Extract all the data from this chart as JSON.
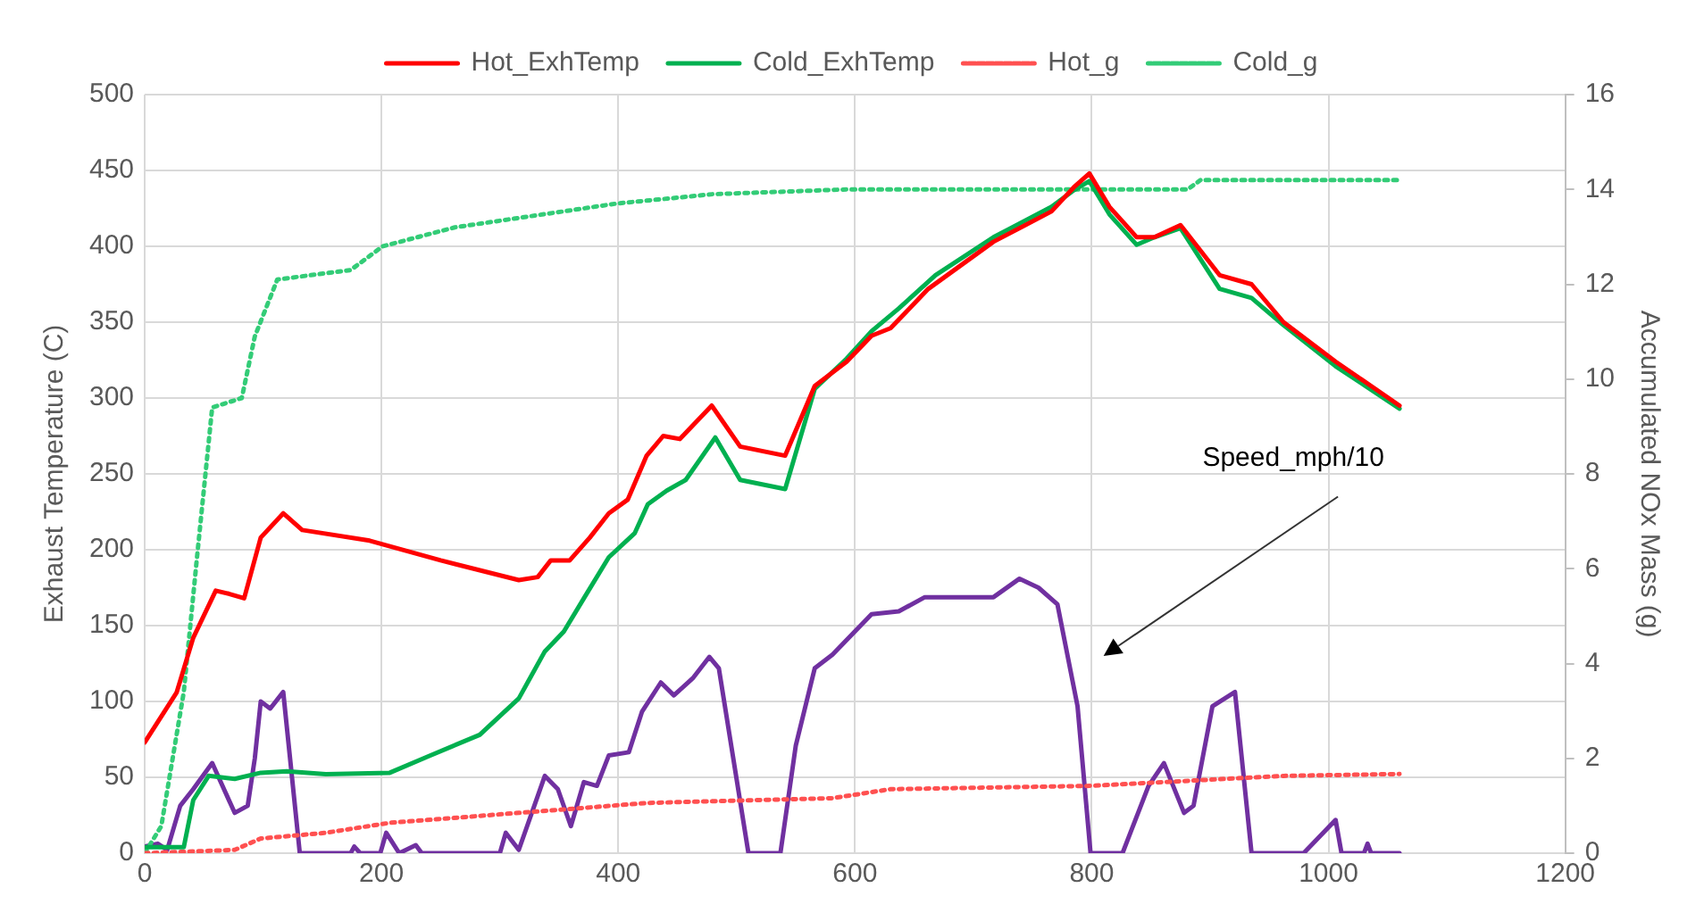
{
  "chart_data": {
    "type": "line",
    "xlabel": null,
    "ylabel": "Exhaust Temperature (C)",
    "y2label": "Accumulated NOx Mass (g)",
    "xlim": [
      0,
      1200
    ],
    "xticks": [
      0,
      200,
      400,
      600,
      800,
      1000,
      1200
    ],
    "ylim": [
      0,
      500
    ],
    "yticks": [
      0,
      50,
      100,
      150,
      200,
      250,
      300,
      350,
      400,
      450,
      500
    ],
    "y2lim": [
      0,
      16
    ],
    "y2ticks": [
      0,
      2,
      4,
      6,
      8,
      10,
      12,
      14,
      16
    ],
    "grid": true,
    "legend": "top",
    "marker": "none",
    "annotations": [
      "Speed_mph/10"
    ],
    "series": [
      {
        "name": "Hot_ExhTemp",
        "color": "#ff0000",
        "line_style": "solid",
        "x": [
          0,
          27,
          41,
          60,
          71,
          84,
          98,
          117,
          133,
          190,
          250,
          316,
          332,
          343,
          359,
          376,
          392,
          408,
          424,
          438,
          452,
          479,
          503,
          541,
          566,
          593,
          614,
          630,
          662,
          717,
          766,
          785,
          798,
          815,
          838,
          853,
          875,
          908,
          935,
          962,
          1006,
          1060
        ],
        "values": [
          73,
          106,
          142,
          173,
          171,
          168,
          208,
          224,
          213,
          206,
          193,
          180,
          182,
          193,
          193,
          208,
          224,
          233,
          262,
          275,
          273,
          295,
          268,
          262,
          308,
          324,
          341,
          346,
          372,
          403,
          423,
          439,
          448,
          426,
          406,
          406,
          414,
          381,
          375,
          350,
          324,
          295
        ]
      },
      {
        "name": "Cold_ExhTemp",
        "color": "#00b050",
        "line_style": "solid",
        "x": [
          0,
          33,
          41,
          54,
          76,
          98,
          120,
          153,
          207,
          240,
          283,
          316,
          338,
          354,
          371,
          392,
          414,
          425,
          441,
          457,
          482,
          503,
          541,
          566,
          593,
          614,
          637,
          668,
          717,
          766,
          785,
          798,
          815,
          838,
          853,
          875,
          908,
          935,
          962,
          1006,
          1060
        ],
        "values": [
          4,
          4,
          35,
          51,
          49,
          53,
          54,
          52,
          53,
          64,
          78,
          102,
          133,
          146,
          168,
          195,
          211,
          230,
          239,
          246,
          274,
          246,
          240,
          306,
          326,
          344,
          359,
          381,
          406,
          426,
          437,
          443,
          421,
          401,
          406,
          412,
          372,
          366,
          348,
          321,
          293
        ]
      },
      {
        "name": "Hot_g",
        "color": "#ff5050",
        "line_style": "dotted",
        "axis": "y2",
        "x": [
          0,
          76,
          98,
          153,
          207,
          316,
          425,
          581,
          630,
          799,
          962,
          1060
        ],
        "values": [
          0,
          0.07,
          0.31,
          0.43,
          0.64,
          0.85,
          1.06,
          1.16,
          1.35,
          1.42,
          1.63,
          1.67
        ]
      },
      {
        "name": "Cold_g",
        "color": "#33cc77",
        "line_style": "dotted",
        "axis": "y2",
        "x": [
          0,
          14,
          33,
          44,
          57,
          82,
          93,
          112,
          174,
          201,
          262,
          398,
          480,
          593,
          881,
          892,
          1060
        ],
        "values": [
          0,
          0.57,
          3.4,
          6.2,
          9.4,
          9.6,
          10.9,
          12.1,
          12.3,
          12.8,
          13.2,
          13.7,
          13.9,
          14.0,
          14.0,
          14.2,
          14.2
        ]
      },
      {
        "color": "#7030a0",
        "line_style": "solid",
        "axis": "y2",
        "x": [
          0,
          11,
          19,
          30,
          41,
          57,
          76,
          87,
          93,
          98,
          106,
          117,
          131,
          174,
          177,
          182,
          199,
          204,
          215,
          229,
          234,
          300,
          305,
          316,
          338,
          349,
          360,
          371,
          382,
          392,
          409,
          420,
          436,
          447,
          463,
          477,
          485,
          510,
          537,
          550,
          566,
          581,
          614,
          637,
          659,
          717,
          739,
          755,
          771,
          788,
          799,
          826,
          848,
          861,
          878,
          886,
          902,
          921,
          935,
          979,
          1006,
          1011,
          1030,
          1033,
          1036,
          1060
        ],
        "values": [
          0.14,
          0.2,
          0.07,
          1.0,
          1.35,
          1.9,
          0.85,
          1.0,
          2.0,
          3.2,
          3.05,
          3.4,
          0,
          0,
          0.14,
          0,
          0,
          0.43,
          0,
          0.17,
          0,
          0,
          0.43,
          0.07,
          1.63,
          1.35,
          0.57,
          1.5,
          1.42,
          2.06,
          2.13,
          2.98,
          3.6,
          3.33,
          3.69,
          4.14,
          3.9,
          0,
          0,
          2.27,
          3.9,
          4.19,
          5.04,
          5.1,
          5.4,
          5.4,
          5.79,
          5.6,
          5.25,
          3.1,
          0,
          0,
          1.42,
          1.9,
          0.85,
          1.0,
          3.1,
          3.4,
          0,
          0,
          0.7,
          0,
          0,
          0.2,
          0,
          0
        ]
      }
    ]
  }
}
